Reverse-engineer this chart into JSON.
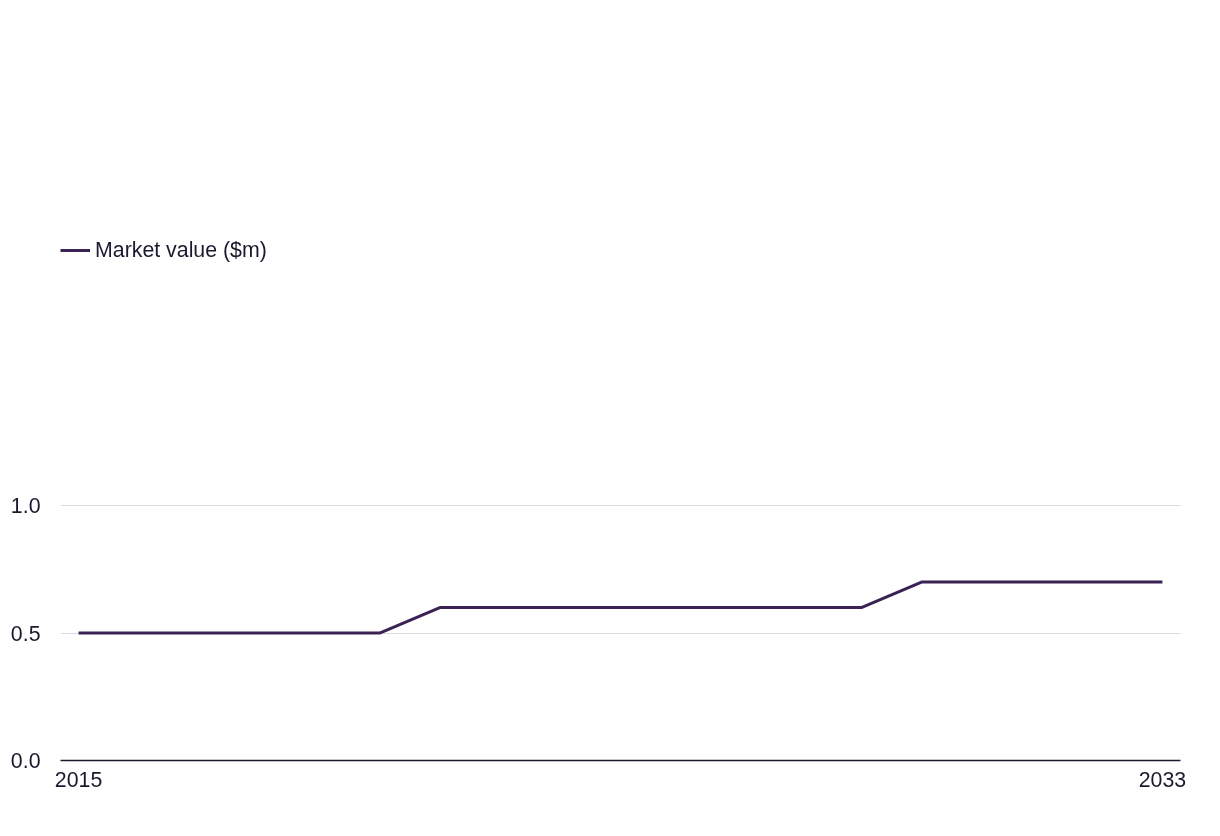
{
  "chart_data": {
    "type": "line",
    "x": [
      2015,
      2016,
      2017,
      2018,
      2019,
      2020,
      2021,
      2022,
      2023,
      2024,
      2025,
      2026,
      2027,
      2028,
      2029,
      2030,
      2031,
      2032,
      2033
    ],
    "series": [
      {
        "name": "Market value ($m)",
        "color": "#3a2354",
        "values": [
          0.5,
          0.5,
          0.5,
          0.5,
          0.5,
          0.5,
          0.6,
          0.6,
          0.6,
          0.6,
          0.6,
          0.6,
          0.6,
          0.6,
          0.7,
          0.7,
          0.7,
          0.7,
          0.7
        ]
      }
    ],
    "xlim": [
      2014.7,
      2033.3
    ],
    "xticks": [
      2015,
      2033
    ],
    "ylim": [
      0,
      1.0
    ],
    "yticks": [
      {
        "value": 0,
        "label": "0.0"
      },
      {
        "value": 0.5,
        "label": "0.5"
      },
      {
        "value": 1.0,
        "label": "1.0"
      }
    ],
    "grid": "y",
    "legend": "top left",
    "marker": "none",
    "line_style": "solid"
  }
}
